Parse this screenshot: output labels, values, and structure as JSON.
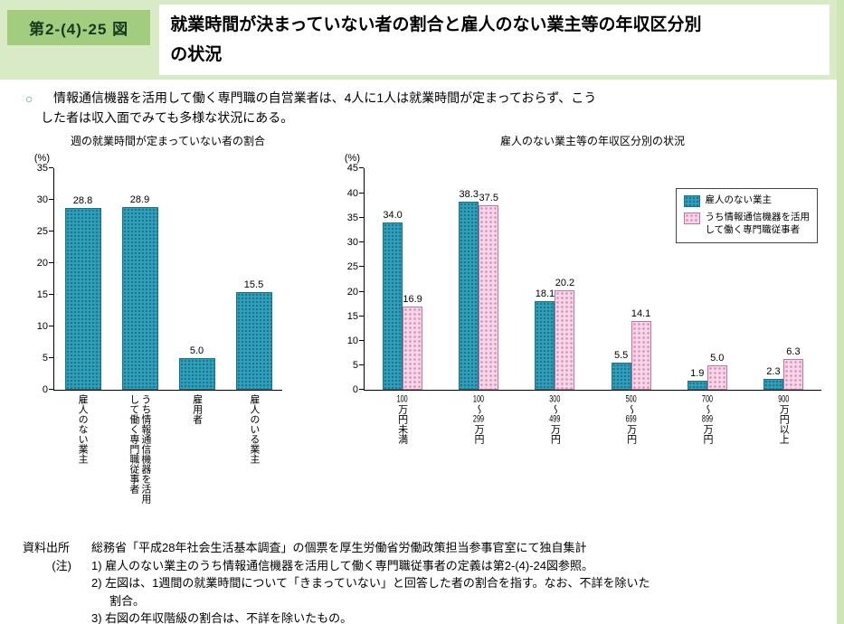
{
  "header": {
    "figure_number": "第2-(4)-25 図",
    "title": "就業時間が決まっていない者の割合と雇人のない業主等の年収区分別\nの状況"
  },
  "lead": {
    "bullet": "○",
    "text": "情報通信機器を活用して働く専門職の自営業者は、4人に1人は就業時間が定まっておらず、こう\nした者は収入面でみても多様な状況にある。"
  },
  "chart_data": [
    {
      "type": "bar",
      "title": "週の就業時間が定まっていない者の割合",
      "unit": "(%)",
      "categories": [
        "雇人のない業主",
        "うち情報通信機器を活用\nして働く専門職従事者",
        "雇用者",
        "雇人のいる業主"
      ],
      "values": [
        28.8,
        28.9,
        5.0,
        15.5
      ],
      "ylim": [
        0,
        35
      ],
      "ytick_step": 5,
      "bar_color": "#309fba",
      "grid": false
    },
    {
      "type": "grouped-bar",
      "title": "雇人のない業主等の年収区分別の状況",
      "unit": "(%)",
      "categories": [
        "100万円未満",
        "100〜299万円",
        "300〜499万円",
        "500〜699万円",
        "700〜899万円",
        "900万円以上"
      ],
      "series": [
        {
          "name": "雇人のない業主",
          "color": "#309fba",
          "values": [
            34.0,
            38.3,
            18.1,
            5.5,
            1.9,
            2.3
          ]
        },
        {
          "name": "うち情報通信機器を活用して働く専門職従事者",
          "color": "#f5d8e8",
          "values": [
            16.9,
            37.5,
            20.2,
            14.1,
            5.0,
            6.3
          ]
        }
      ],
      "ylim": [
        0,
        45
      ],
      "ytick_step": 5,
      "legend": [
        "雇人のない業主",
        "うち情報通信機器を活用\nして働く専門職従事者"
      ],
      "legend_position": "top-right",
      "grid": false
    }
  ],
  "notes": {
    "source_label": "資料出所",
    "source_text": "総務省「平成28年社会生活基本調査」の個票を厚生労働省労働政策担当参事官室にて独自集計",
    "note_label": "(注)",
    "items": [
      "1) 雇人のない業主のうち情報通信機器を活用して働く専門職従事者の定義は第2-(4)-24図参照。",
      "2) 左図は、1週間の就業時間について「きまっていない」と回答した者の割合を指す。なお、不詳を除いた\n割合。",
      "3) 右図の年収階級の割合は、不詳を除いたもの。"
    ]
  },
  "colors": {
    "header_band": "#d9eac6",
    "figure_badge": "#a3cd7e",
    "edge_stripe": "#cfe5b6",
    "teal_bar": "#309fba",
    "pink_bar_fill": "#f5d8e8",
    "pink_bar_dot": "#dd8ab8"
  }
}
